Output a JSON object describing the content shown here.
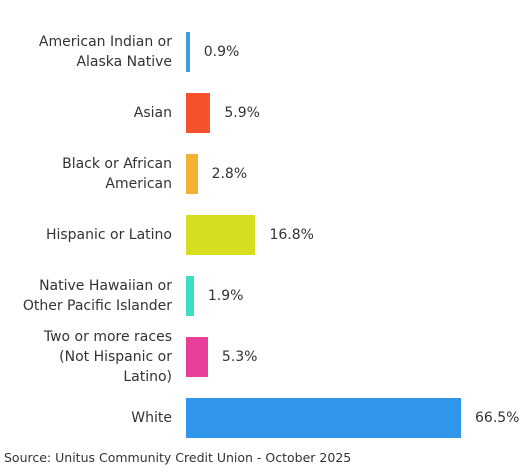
{
  "chart_data": {
    "type": "barh",
    "categories": [
      "American Indian or\nAlaska Native",
      "Asian",
      "Black or African\nAmerican",
      "Hispanic or Latino",
      "Native Hawaiian or\nOther Pacific Islander",
      "Two or more races\n(Not Hispanic or\nLatino)",
      "White"
    ],
    "values": [
      0.9,
      5.9,
      2.8,
      16.8,
      1.9,
      5.3,
      66.5
    ],
    "value_labels": [
      "0.9%",
      "5.9%",
      "2.8%",
      "16.8%",
      "1.9%",
      "5.3%",
      "66.5%"
    ],
    "colors": [
      "#3a9ee4",
      "#f4512c",
      "#f5b335",
      "#d5df1f",
      "#3fdcc8",
      "#e8409a",
      "#2f96ea"
    ],
    "source": "Source: Unitus Community Credit Union - October 2025"
  }
}
